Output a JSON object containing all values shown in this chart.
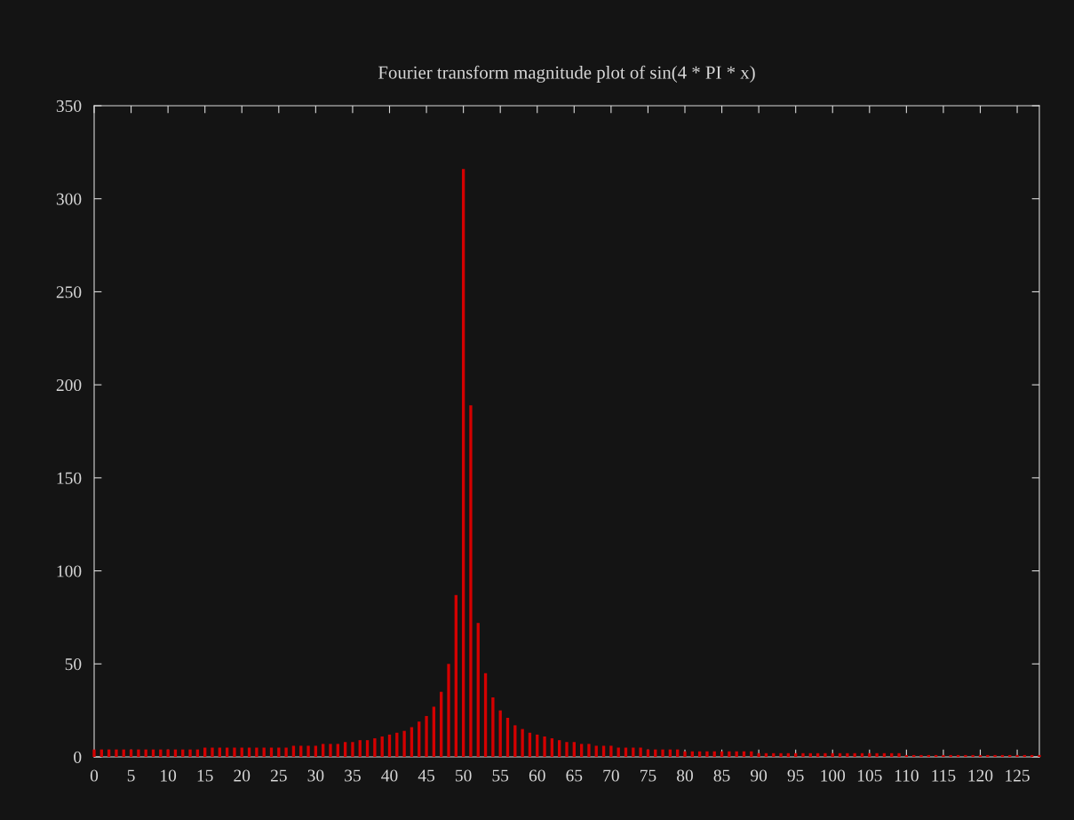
{
  "chart_data": {
    "type": "bar",
    "title": "Fourier transform magnitude plot of sin(4 * PI * x)",
    "x": [
      0,
      1,
      2,
      3,
      4,
      5,
      6,
      7,
      8,
      9,
      10,
      11,
      12,
      13,
      14,
      15,
      16,
      17,
      18,
      19,
      20,
      21,
      22,
      23,
      24,
      25,
      26,
      27,
      28,
      29,
      30,
      31,
      32,
      33,
      34,
      35,
      36,
      37,
      38,
      39,
      40,
      41,
      42,
      43,
      44,
      45,
      46,
      47,
      48,
      49,
      50,
      51,
      52,
      53,
      54,
      55,
      56,
      57,
      58,
      59,
      60,
      61,
      62,
      63,
      64,
      65,
      66,
      67,
      68,
      69,
      70,
      71,
      72,
      73,
      74,
      75,
      76,
      77,
      78,
      79,
      80,
      81,
      82,
      83,
      84,
      85,
      86,
      87,
      88,
      89,
      90,
      91,
      92,
      93,
      94,
      95,
      96,
      97,
      98,
      99,
      100,
      101,
      102,
      103,
      104,
      105,
      106,
      107,
      108,
      109,
      110,
      111,
      112,
      113,
      114,
      115,
      116,
      117,
      118,
      119,
      120,
      121,
      122,
      123,
      124,
      125,
      126,
      127,
      128
    ],
    "values": [
      4,
      4,
      4,
      4,
      4,
      4,
      4,
      4,
      4,
      4,
      4,
      4,
      4,
      4,
      4,
      5,
      5,
      5,
      5,
      5,
      5,
      5,
      5,
      5,
      5,
      5,
      5,
      6,
      6,
      6,
      6,
      7,
      7,
      7,
      8,
      8,
      9,
      9,
      10,
      11,
      12,
      13,
      14,
      16,
      19,
      22,
      27,
      35,
      50,
      87,
      316,
      189,
      72,
      45,
      32,
      25,
      21,
      17,
      15,
      13,
      12,
      11,
      10,
      9,
      8,
      8,
      7,
      7,
      6,
      6,
      6,
      5,
      5,
      5,
      5,
      4,
      4,
      4,
      4,
      4,
      3,
      3,
      3,
      3,
      3,
      3,
      3,
      3,
      3,
      3,
      2,
      2,
      2,
      2,
      2,
      2,
      2,
      2,
      2,
      2,
      2,
      2,
      2,
      2,
      2,
      2,
      2,
      2,
      2,
      2,
      1,
      1,
      1,
      1,
      1,
      1,
      1,
      1,
      1,
      1,
      1,
      1,
      1,
      1,
      1,
      1,
      1,
      1,
      1
    ],
    "color": "#d40000",
    "xlim": [
      0,
      128
    ],
    "xticks": [
      0,
      5,
      10,
      15,
      20,
      25,
      30,
      35,
      40,
      45,
      50,
      55,
      60,
      65,
      70,
      75,
      80,
      85,
      90,
      95,
      100,
      105,
      110,
      115,
      120,
      125
    ],
    "ylim": [
      0,
      350
    ],
    "yticks": [
      0,
      50,
      100,
      150,
      200,
      250,
      300,
      350
    ],
    "grid": false,
    "legend": false
  }
}
